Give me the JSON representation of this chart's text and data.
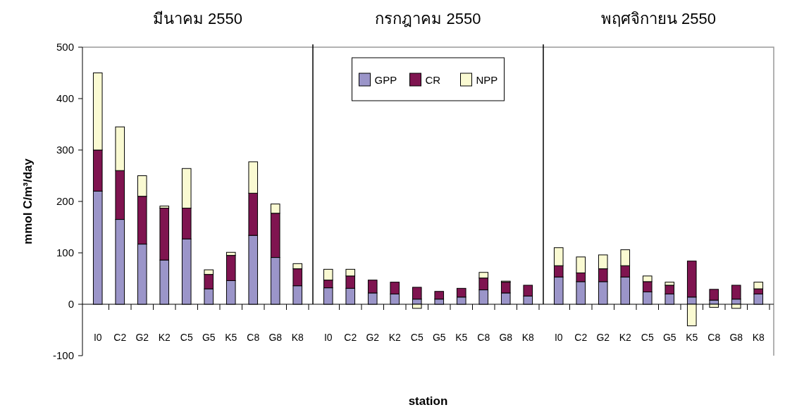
{
  "chart_data": [
    {
      "type": "bar",
      "title": "มีนาคม 2550",
      "ylabel": "mmol C/m³/day",
      "stacked": true,
      "legend": false,
      "grid": false,
      "categories": [
        "I0",
        "C2",
        "G2",
        "K2",
        "C5",
        "G5",
        "K5",
        "C8",
        "G8",
        "K8"
      ],
      "series": [
        {
          "color": "#9b95c9",
          "values": [
            220,
            165,
            117,
            86,
            127,
            30,
            46,
            134,
            91,
            36
          ]
        },
        {
          "color": "#7f1450",
          "values": [
            80,
            95,
            93,
            101,
            60,
            28,
            49,
            82,
            86,
            33
          ]
        },
        {
          "color": "#fafad2",
          "values": [
            150,
            85,
            40,
            4,
            77,
            9,
            6,
            61,
            18,
            10
          ]
        }
      ],
      "ylim": [
        -100,
        500
      ],
      "yticks": [
        -100,
        0,
        100,
        200,
        300,
        400,
        500
      ],
      "ref_lines": [
        {
          "axis": "y",
          "value": 0,
          "color": "#000000"
        }
      ]
    },
    {
      "type": "bar",
      "title": "กรกฎาคม 2550",
      "xlabel": "station",
      "stacked": true,
      "legend": "top",
      "grid": false,
      "tick_labels": "x",
      "categories": [
        "I0",
        "C2",
        "G2",
        "K2",
        "C5",
        "G5",
        "K5",
        "C8",
        "G8",
        "K8"
      ],
      "series": [
        {
          "name": "GPP",
          "color": "#9b95c9",
          "values": [
            32,
            31,
            22,
            20,
            10,
            10,
            14,
            28,
            22,
            16
          ]
        },
        {
          "name": "CR",
          "color": "#7f1450",
          "values": [
            15,
            24,
            25,
            23,
            23,
            15,
            17,
            23,
            21,
            21
          ]
        },
        {
          "name": "NPP",
          "color": "#fafad2",
          "values": [
            21,
            13,
            0,
            0,
            -8,
            0,
            0,
            11,
            2,
            0
          ]
        }
      ],
      "ylim": [
        -100,
        500
      ],
      "ref_lines": [
        {
          "axis": "y",
          "value": 0,
          "color": "#000000"
        }
      ]
    },
    {
      "type": "bar",
      "title": "พฤศจิกายน 2550",
      "stacked": true,
      "legend": false,
      "grid": false,
      "tick_labels": "x",
      "categories": [
        "I0",
        "C2",
        "G2",
        "K2",
        "C5",
        "G5",
        "K5",
        "C8",
        "G8",
        "K8"
      ],
      "series": [
        {
          "color": "#9b95c9",
          "values": [
            53,
            44,
            44,
            53,
            24,
            20,
            14,
            8,
            10,
            20
          ]
        },
        {
          "color": "#7f1450",
          "values": [
            22,
            17,
            25,
            22,
            20,
            17,
            70,
            21,
            27,
            10
          ]
        },
        {
          "color": "#fafad2",
          "values": [
            35,
            31,
            27,
            31,
            11,
            6,
            -42,
            -6,
            -8,
            13
          ]
        }
      ],
      "ylim": [
        -100,
        500
      ],
      "ref_lines": [
        {
          "axis": "y",
          "value": 0,
          "color": "#000000"
        }
      ]
    }
  ]
}
